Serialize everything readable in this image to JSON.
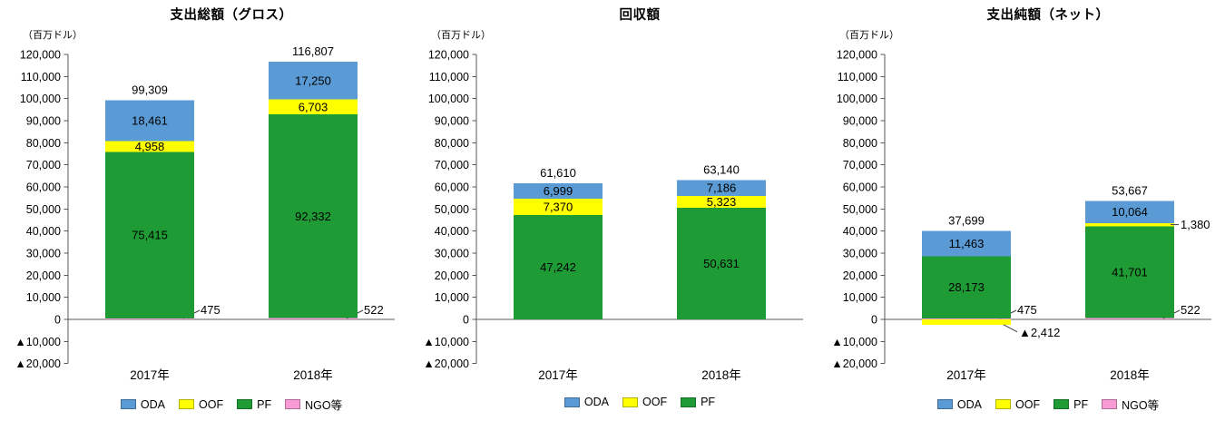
{
  "chart_data": [
    {
      "type": "bar",
      "stacked": true,
      "title": "支出総額（グロス）",
      "unit_label": "（百万ドル）",
      "categories": [
        "2017年",
        "2018年"
      ],
      "series": [
        {
          "name": "ODA",
          "color": "#5B9BD5",
          "text_color": "#FFFFFF",
          "values": [
            18461,
            17250
          ]
        },
        {
          "name": "OOF",
          "color": "#FFFF00",
          "text_color": "#000000",
          "values": [
            4958,
            6703
          ]
        },
        {
          "name": "PF",
          "color": "#1E9B35",
          "text_color": "#FFFFFF",
          "values": [
            75415,
            92332
          ]
        },
        {
          "name": "NGO等",
          "color": "#FA9BD5",
          "text_color": "#000000",
          "values": [
            475,
            522
          ]
        }
      ],
      "totals": [
        99309,
        116807
      ],
      "callouts": [
        {
          "series": "NGO等",
          "category": 0,
          "label": "475"
        },
        {
          "series": "NGO等",
          "category": 1,
          "label": "522"
        }
      ],
      "ylim": [
        -20000,
        120000
      ],
      "ytick_step": 10000,
      "legend_position": "bottom",
      "grid": false
    },
    {
      "type": "bar",
      "stacked": true,
      "title": "回収額",
      "unit_label": "（百万ドル）",
      "categories": [
        "2017年",
        "2018年"
      ],
      "series": [
        {
          "name": "ODA",
          "color": "#5B9BD5",
          "text_color": "#FFFFFF",
          "values": [
            6999,
            7186
          ]
        },
        {
          "name": "OOF",
          "color": "#FFFF00",
          "text_color": "#000000",
          "values": [
            7370,
            5323
          ]
        },
        {
          "name": "PF",
          "color": "#1E9B35",
          "text_color": "#FFFFFF",
          "values": [
            47242,
            50631
          ]
        }
      ],
      "totals": [
        61610,
        63140
      ],
      "callouts": [],
      "ylim": [
        -20000,
        120000
      ],
      "ytick_step": 10000,
      "legend_position": "bottom",
      "grid": false
    },
    {
      "type": "bar",
      "stacked": true,
      "title": "支出純額（ネット）",
      "unit_label": "（百万ドル）",
      "categories": [
        "2017年",
        "2018年"
      ],
      "series": [
        {
          "name": "ODA",
          "color": "#5B9BD5",
          "text_color": "#FFFFFF",
          "values": [
            11463,
            10064
          ]
        },
        {
          "name": "OOF",
          "color": "#FFFF00",
          "text_color": "#000000",
          "values": [
            -2412,
            1380
          ]
        },
        {
          "name": "PF",
          "color": "#1E9B35",
          "text_color": "#FFFFFF",
          "values": [
            28173,
            41701
          ]
        },
        {
          "name": "NGO等",
          "color": "#FA9BD5",
          "text_color": "#000000",
          "values": [
            475,
            522
          ]
        }
      ],
      "totals": [
        37699,
        53667
      ],
      "callouts": [
        {
          "series": "NGO等",
          "category": 0,
          "label": "475"
        },
        {
          "series": "OOF",
          "category": 0,
          "label": "▲2,412"
        },
        {
          "series": "OOF",
          "category": 1,
          "label": "1,380"
        },
        {
          "series": "NGO等",
          "category": 1,
          "label": "522"
        }
      ],
      "ylim": [
        -20000,
        120000
      ],
      "ytick_step": 10000,
      "legend_position": "bottom",
      "grid": false
    }
  ],
  "axis_style": {
    "line_color": "#595959",
    "negative_prefix": "▲"
  }
}
